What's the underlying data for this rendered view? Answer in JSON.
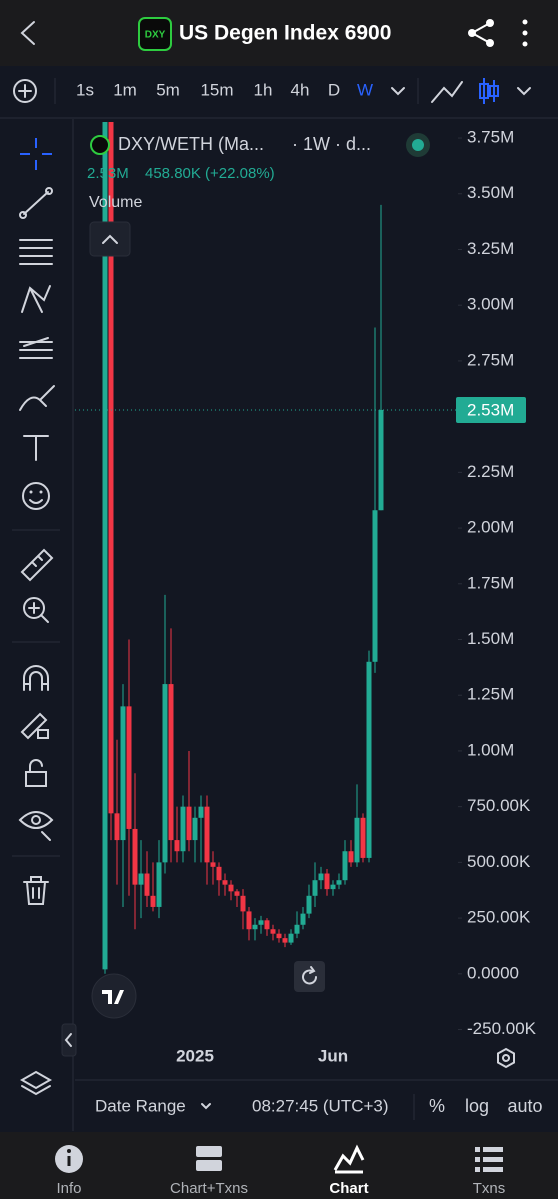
{
  "header": {
    "title": "US Degen Index 6900",
    "icon_text": "DXY"
  },
  "intervals": [
    "1s",
    "1m",
    "5m",
    "15m",
    "1h",
    "4h",
    "D",
    "W"
  ],
  "active_interval": "W",
  "legend": {
    "symbol": "DXY/WETH (Ma...",
    "interval": "· 1W · d...",
    "price": "2.53M",
    "change": "458.80K (+22.08%)",
    "indicator": "Volume"
  },
  "chart_data": {
    "type": "candlestick",
    "categories": [
      null,
      null,
      null,
      null,
      null,
      null,
      null,
      null,
      null,
      null,
      null,
      null,
      null,
      null,
      null,
      null,
      null,
      null,
      null,
      null,
      null,
      null,
      null,
      null,
      null,
      null,
      null,
      null,
      null,
      null,
      null,
      null,
      null,
      null,
      null,
      null,
      null,
      null,
      null,
      null,
      null,
      null,
      null,
      null,
      null,
      null,
      null
    ],
    "open": [
      20000,
      3900000,
      720000,
      600000,
      1200000,
      650000,
      400000,
      450000,
      350000,
      300000,
      500000,
      1300000,
      600000,
      550000,
      750000,
      600000,
      700000,
      750000,
      500000,
      480000,
      420000,
      400000,
      370000,
      350000,
      280000,
      200000,
      220000,
      240000,
      200000,
      180000,
      160000,
      140000,
      180000,
      220000,
      270000,
      350000,
      420000,
      450000,
      380000,
      400000,
      420000,
      550000,
      500000,
      700000,
      520000,
      1400000,
      2080000
    ],
    "high": [
      4000000,
      4000000,
      1050000,
      1300000,
      1500000,
      900000,
      600000,
      550000,
      500000,
      600000,
      1700000,
      1550000,
      750000,
      800000,
      1000000,
      750000,
      800000,
      800000,
      550000,
      500000,
      450000,
      420000,
      380000,
      380000,
      300000,
      250000,
      260000,
      250000,
      220000,
      200000,
      180000,
      200000,
      280000,
      300000,
      400000,
      500000,
      480000,
      470000,
      420000,
      450000,
      600000,
      600000,
      850000,
      720000,
      1450000,
      2900000,
      3450000
    ],
    "low": [
      0,
      600000,
      400000,
      300000,
      350000,
      200000,
      250000,
      300000,
      280000,
      250000,
      450000,
      500000,
      500000,
      500000,
      550000,
      500000,
      500000,
      400000,
      400000,
      350000,
      350000,
      330000,
      300000,
      200000,
      150000,
      150000,
      180000,
      170000,
      150000,
      140000,
      120000,
      130000,
      160000,
      200000,
      250000,
      300000,
      380000,
      350000,
      350000,
      380000,
      400000,
      480000,
      480000,
      500000,
      500000,
      1350000,
      2080000
    ],
    "close": [
      3900000,
      720000,
      600000,
      1200000,
      650000,
      400000,
      450000,
      350000,
      300000,
      500000,
      1300000,
      600000,
      550000,
      750000,
      600000,
      700000,
      750000,
      500000,
      480000,
      420000,
      400000,
      370000,
      350000,
      280000,
      200000,
      220000,
      240000,
      200000,
      180000,
      160000,
      140000,
      180000,
      220000,
      270000,
      350000,
      420000,
      450000,
      380000,
      400000,
      420000,
      550000,
      500000,
      700000,
      520000,
      1400000,
      2080000,
      2530000
    ],
    "up_color": "#22ab94",
    "down_color": "#f23645",
    "xticks": [
      {
        "value": 15,
        "label": "2025"
      },
      {
        "value": 38,
        "label": "Jun"
      }
    ],
    "ylim": [
      -297000,
      3822000
    ],
    "yticks": [
      {
        "value": 3750000,
        "label": "3.75M"
      },
      {
        "value": 3500000,
        "label": "3.50M"
      },
      {
        "value": 3250000,
        "label": "3.25M"
      },
      {
        "value": 3000000,
        "label": "3.00M"
      },
      {
        "value": 2750000,
        "label": "2.75M"
      },
      {
        "value": 2250000,
        "label": "2.25M"
      },
      {
        "value": 2000000,
        "label": "2.00M"
      },
      {
        "value": 1750000,
        "label": "1.75M"
      },
      {
        "value": 1500000,
        "label": "1.50M"
      },
      {
        "value": 1250000,
        "label": "1.25M"
      },
      {
        "value": 1000000,
        "label": "1.00M"
      },
      {
        "value": 750000,
        "label": "750.00K"
      },
      {
        "value": 500000,
        "label": "500.00K"
      },
      {
        "value": 250000,
        "label": "250.00K"
      },
      {
        "value": 0,
        "label": "0.0000"
      },
      {
        "value": -250000,
        "label": "-250.00K"
      }
    ],
    "last_price": {
      "value": 2530000,
      "label": "2.53M"
    }
  },
  "footer": {
    "date_range": "Date Range",
    "time": "08:27:45 (UTC+3)",
    "options": [
      "%",
      "log",
      "auto"
    ]
  },
  "tabs": [
    "Info",
    "Chart+Txns",
    "Chart",
    "Txns"
  ],
  "active_tab": "Chart"
}
